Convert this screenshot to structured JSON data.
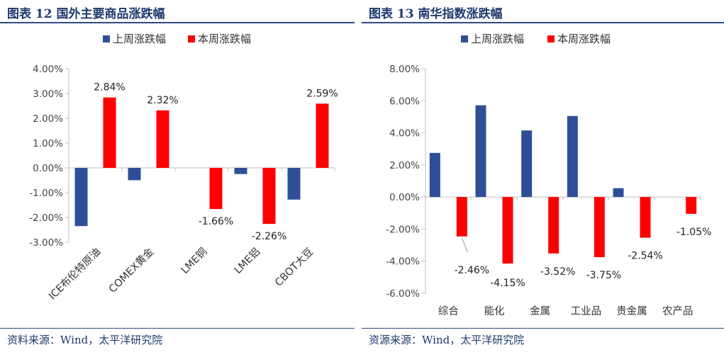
{
  "left": {
    "title": "图表 12  国外主要商品涨跌幅",
    "source": "资料来源：Wind，太平洋研究院"
  },
  "right": {
    "title": "图表 13  南华指数涨跌幅",
    "source": "资源来源：Wind，太平洋研究院"
  },
  "colors": {
    "last_week": "#2e4f97",
    "this_week": "#ff0000",
    "axis": "#bfbfbf",
    "title": "#1f3a6e"
  },
  "chart_data": [
    {
      "type": "bar",
      "title": "",
      "xlabel": "",
      "ylabel": "",
      "legend": "top",
      "grid": false,
      "categories": [
        "ICE布伦特原油",
        "COMEX黄金",
        "LME铜",
        "LME铝",
        "CBOT大豆"
      ],
      "series": [
        {
          "name": "上周涨跌幅",
          "values": [
            -2.35,
            -0.5,
            0.0,
            -0.25,
            -1.28
          ],
          "labels": [
            "",
            "",
            "",
            "",
            ""
          ]
        },
        {
          "name": "本周涨跌幅",
          "values": [
            2.84,
            2.32,
            -1.66,
            -2.26,
            2.59
          ],
          "labels": [
            "2.84%",
            "2.32%",
            "-1.66%",
            "-2.26%",
            "2.59%"
          ]
        }
      ],
      "ylim": [
        -3,
        4
      ],
      "ytick_step": 1,
      "ytick_labels": [
        "-3.00%",
        "-2.00%",
        "-1.00%",
        "0.00%",
        "1.00%",
        "2.00%",
        "3.00%",
        "4.00%"
      ]
    },
    {
      "type": "bar",
      "title": "",
      "xlabel": "",
      "ylabel": "",
      "legend": "top",
      "grid": false,
      "categories": [
        "综合",
        "能化",
        "金属",
        "工业品",
        "贵金属",
        "农产品"
      ],
      "series": [
        {
          "name": "上周涨跌幅",
          "values": [
            2.75,
            5.72,
            4.15,
            5.05,
            0.55,
            0.0
          ],
          "labels": [
            "",
            "",
            "",
            "",
            "",
            ""
          ]
        },
        {
          "name": "本周涨跌幅",
          "values": [
            -2.46,
            -4.15,
            -3.52,
            -3.75,
            -2.54,
            -1.05
          ],
          "labels": [
            "-2.46%",
            "-4.15%",
            "-3.52%",
            "-3.75%",
            "-2.54%",
            "-1.05%"
          ]
        }
      ],
      "ylim": [
        -6,
        8
      ],
      "ytick_step": 2,
      "ytick_labels": [
        "-6.00%",
        "-4.00%",
        "-2.00%",
        "0.00%",
        "2.00%",
        "4.00%",
        "6.00%",
        "8.00%"
      ]
    }
  ]
}
